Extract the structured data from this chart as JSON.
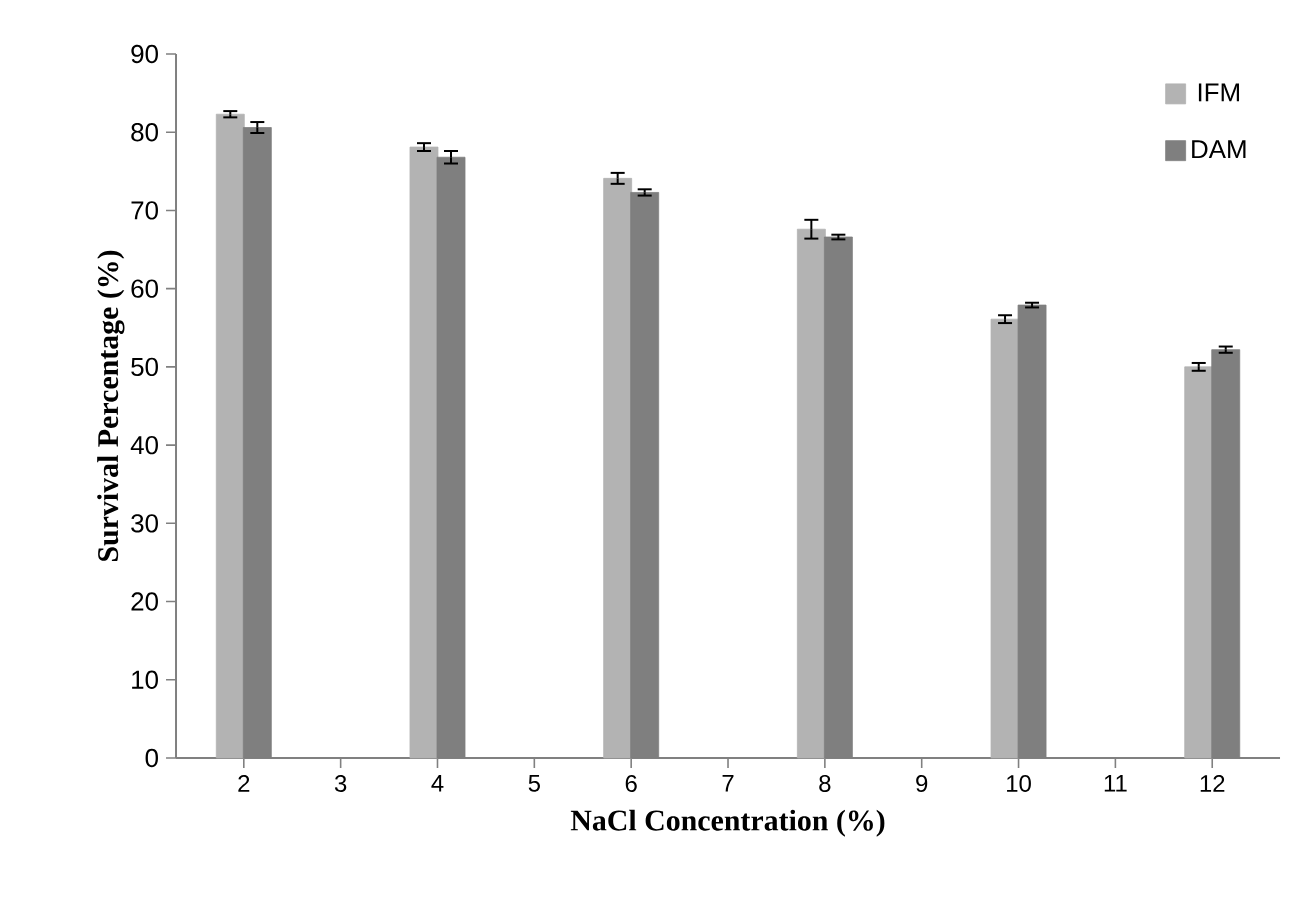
{
  "chart_data": {
    "type": "bar",
    "xlabel": "NaCl Concentration (%)",
    "ylabel": "Survival Percentage (%)",
    "categories": [
      "2",
      "3",
      "4",
      "5",
      "6",
      "7",
      "8",
      "9",
      "10",
      "11",
      "12"
    ],
    "series": [
      {
        "name": "IFM",
        "color": "#b3b3b3",
        "values": [
          82.3,
          null,
          78.1,
          null,
          74.1,
          null,
          67.6,
          null,
          56.1,
          null,
          50.0
        ],
        "errors": [
          0.4,
          null,
          0.5,
          null,
          0.7,
          null,
          1.2,
          null,
          0.5,
          null,
          0.5
        ]
      },
      {
        "name": "DAM",
        "color": "#7f7f7f",
        "values": [
          80.6,
          null,
          76.8,
          null,
          72.3,
          null,
          66.6,
          null,
          57.9,
          null,
          52.2
        ],
        "errors": [
          0.7,
          null,
          0.8,
          null,
          0.4,
          null,
          0.3,
          null,
          0.3,
          null,
          0.4
        ]
      }
    ],
    "ylim": [
      0,
      90
    ],
    "yticks": [
      0,
      10,
      20,
      30,
      40,
      50,
      60,
      70,
      80,
      90
    ],
    "legend": "top right"
  }
}
